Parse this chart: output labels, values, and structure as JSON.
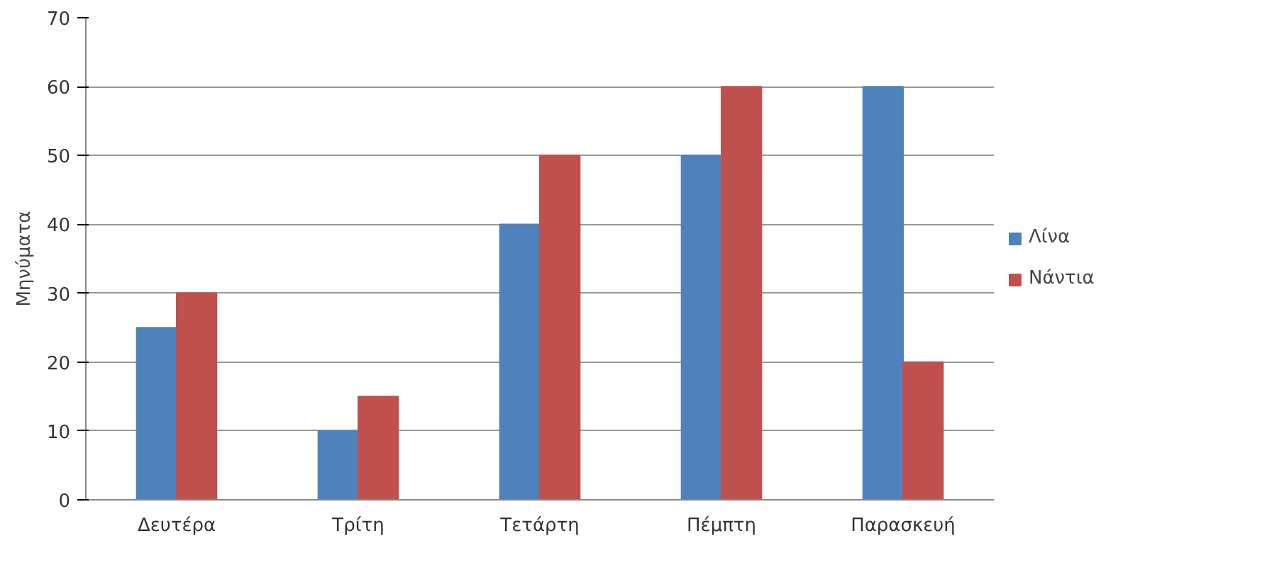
{
  "chart_data": {
    "type": "bar",
    "ylabel": "Μηνύματα",
    "categories": [
      "Δευτέρα",
      "Τρίτη",
      "Τετάρτη",
      "Πέμπτη",
      "Παρασκευή"
    ],
    "series": [
      {
        "name": "Λίνα",
        "color": "#4f81bd",
        "values": [
          25,
          10,
          40,
          50,
          60
        ]
      },
      {
        "name": "Νάντια",
        "color": "#c0504d",
        "values": [
          30,
          15,
          50,
          60,
          20
        ]
      }
    ],
    "ylim": [
      0,
      70
    ],
    "yticks": [
      0,
      10,
      20,
      30,
      40,
      50,
      60,
      70
    ],
    "grid": "y",
    "legend": "right"
  }
}
